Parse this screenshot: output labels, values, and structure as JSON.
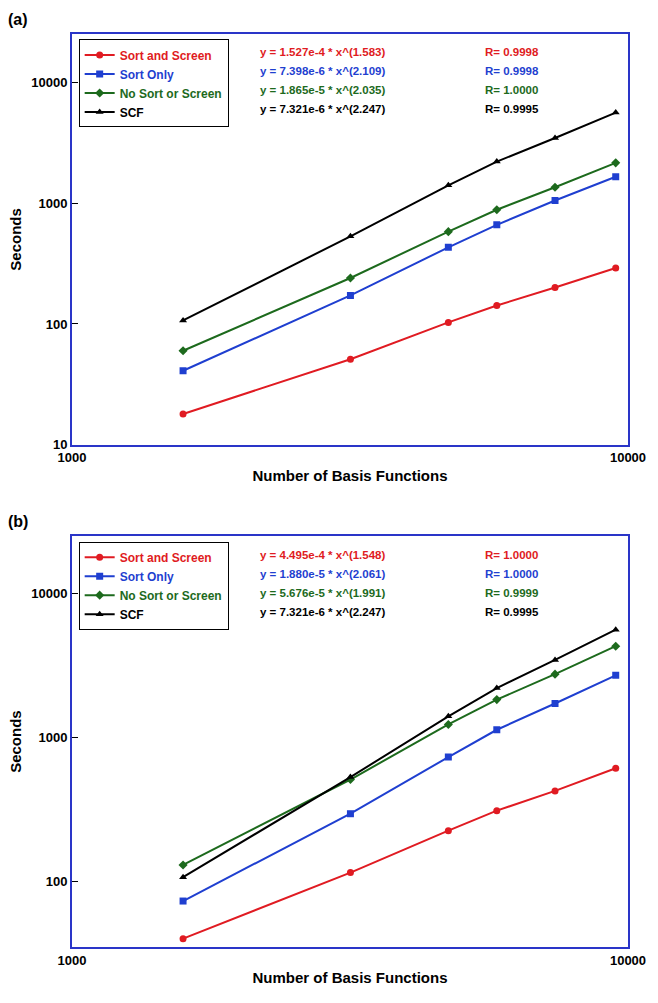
{
  "chart_data": [
    {
      "type": "line",
      "title": "(a)",
      "x": [
        1584,
        3168,
        4752,
        5808,
        7392,
        9504
      ],
      "xlabel": "Number of Basis Functions",
      "ylabel": "Seconds",
      "xlim": [
        1000,
        10000
      ],
      "xticks": [
        1000,
        10000
      ],
      "ylim": [
        10,
        25000
      ],
      "yticks": [
        10,
        100,
        1000,
        10000
      ],
      "log": true,
      "grid": false,
      "legend": "upper left",
      "series": [
        {
          "name": "Sort and Screen",
          "color": "#e01b22",
          "marker": "circle",
          "values": [
            18,
            51,
            103,
            142,
            200,
            290
          ],
          "fit": "y = 1.527e-4 * x^(1.583)",
          "r": "R= 0.9998"
        },
        {
          "name": "Sort Only",
          "color": "#1f3fd0",
          "marker": "square",
          "values": [
            41,
            172,
            430,
            660,
            1050,
            1650
          ],
          "fit": "y = 7.398e-6 * x^(2.109)",
          "r": "R= 0.9998"
        },
        {
          "name": "No Sort or Screen",
          "color": "#1d6a1d",
          "marker": "diamond",
          "values": [
            60,
            240,
            580,
            880,
            1350,
            2150
          ],
          "fit": "y = 1.865e-5 * x^(2.035)",
          "r": "R= 1.0000"
        },
        {
          "name": "SCF",
          "color": "#000000",
          "marker": "triangle-up",
          "values": [
            107,
            530,
            1400,
            2200,
            3450,
            5600
          ],
          "fit": "y = 7.321e-6 * x^(2.247)",
          "r": "R= 0.9995"
        }
      ]
    },
    {
      "type": "line",
      "title": "(b)",
      "x": [
        1584,
        3168,
        4752,
        5808,
        7392,
        9504
      ],
      "xlabel": "Number of Basis Functions",
      "ylabel": "Seconds",
      "xlim": [
        1000,
        10000
      ],
      "xticks": [
        1000,
        10000
      ],
      "ylim": [
        35,
        25000
      ],
      "yticks": [
        100,
        1000,
        10000
      ],
      "log": true,
      "grid": false,
      "legend": "upper left",
      "series": [
        {
          "name": "Sort and Screen",
          "color": "#e01b22",
          "marker": "circle",
          "values": [
            40,
            115,
            225,
            310,
            425,
            610
          ],
          "fit": "y = 4.495e-4 * x^(1.548)",
          "r": "R= 1.0000"
        },
        {
          "name": "Sort Only",
          "color": "#1f3fd0",
          "marker": "square",
          "values": [
            73,
            295,
            730,
            1130,
            1720,
            2700
          ],
          "fit": "y = 1.880e-5 * x^(2.061)",
          "r": "R= 1.0000"
        },
        {
          "name": "No Sort or Screen",
          "color": "#1d6a1d",
          "marker": "diamond",
          "values": [
            130,
            510,
            1230,
            1830,
            2750,
            4300
          ],
          "fit": "y = 5.676e-5 * x^(1.991)",
          "r": "R= 0.9999"
        },
        {
          "name": "SCF",
          "color": "#000000",
          "marker": "triangle-up",
          "values": [
            107,
            530,
            1400,
            2200,
            3450,
            5600
          ],
          "fit": "y = 7.321e-6 * x^(2.247)",
          "r": "R= 0.9995"
        }
      ]
    }
  ]
}
